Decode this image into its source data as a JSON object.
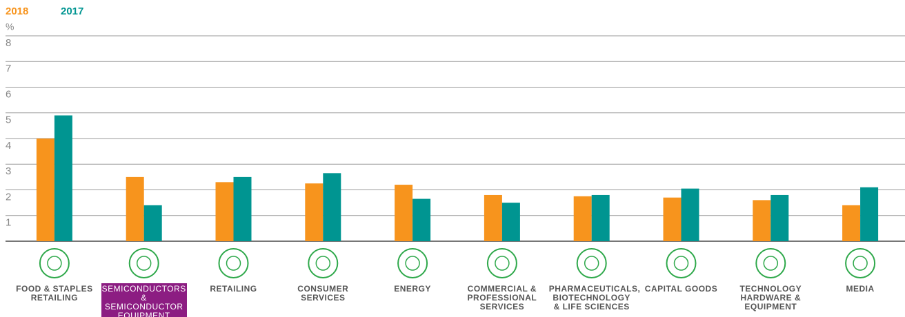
{
  "chart_data": {
    "type": "bar",
    "y_unit": "%",
    "categories": [
      "FOOD & STAPLES RETAILING",
      "SEMICONDUCTORS & SEMICONDUCTOR EQUIPMENT",
      "RETAILING",
      "CONSUMER SERVICES",
      "ENERGY",
      "COMMERCIAL & PROFESSIONAL SERVICES",
      "PHARMACEUTICALS, BIOTECHNOLOGY & LIFE SCIENCES",
      "CAPITAL GOODS",
      "TECHNOLOGY HARDWARE & EQUIPMENT",
      "MEDIA"
    ],
    "series": [
      {
        "name": "2018",
        "color": "#f7941d",
        "values": [
          4.0,
          2.5,
          2.3,
          2.25,
          2.2,
          1.8,
          1.75,
          1.7,
          1.6,
          1.4
        ]
      },
      {
        "name": "2017",
        "color": "#009591",
        "values": [
          4.9,
          1.4,
          2.5,
          2.65,
          1.65,
          1.5,
          1.8,
          2.05,
          1.8,
          2.1
        ]
      }
    ],
    "ylim": [
      0,
      8
    ],
    "yticks": [
      1,
      2,
      3,
      4,
      5,
      6,
      7,
      8
    ],
    "grid": true,
    "selected_index": 1
  }
}
